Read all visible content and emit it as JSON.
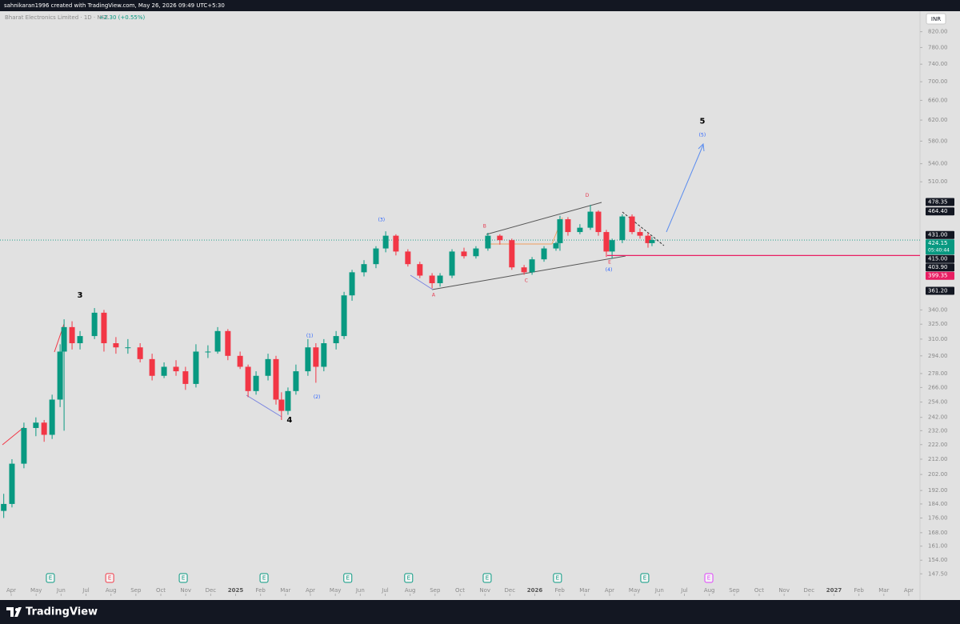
{
  "header": {
    "credit": "sahnikaran1996 created with TradingView.com, May 26, 2026 09:49 UTC+5:30",
    "symbol": "Bharat Electronics Limited · 1D · NSE",
    "change": "+2.30 (+0.55%)",
    "currency": "INR"
  },
  "footer": {
    "brand": "TradingView"
  },
  "chart_data": {
    "type": "candlestick",
    "log_scale": true,
    "colors": {
      "up": "#089981",
      "down": "#f23645",
      "last_price_line": "#089981"
    },
    "xlim": [
      -0.45,
      36.45
    ],
    "xticks": [
      {
        "value": 0,
        "label": "Apr"
      },
      {
        "value": 1,
        "label": "May"
      },
      {
        "value": 2,
        "label": "Jun"
      },
      {
        "value": 3,
        "label": "Jul"
      },
      {
        "value": 4,
        "label": "Aug"
      },
      {
        "value": 5,
        "label": "Sep"
      },
      {
        "value": 6,
        "label": "Oct"
      },
      {
        "value": 7,
        "label": "Nov"
      },
      {
        "value": 8,
        "label": "Dec"
      },
      {
        "value": 9,
        "label": "2025"
      },
      {
        "value": 10,
        "label": "Feb"
      },
      {
        "value": 11,
        "label": "Mar"
      },
      {
        "value": 12,
        "label": "Apr"
      },
      {
        "value": 13,
        "label": "May"
      },
      {
        "value": 14,
        "label": "Jun"
      },
      {
        "value": 15,
        "label": "Jul"
      },
      {
        "value": 16,
        "label": "Aug"
      },
      {
        "value": 17,
        "label": "Sep"
      },
      {
        "value": 18,
        "label": "Oct"
      },
      {
        "value": 19,
        "label": "Nov"
      },
      {
        "value": 20,
        "label": "Dec"
      },
      {
        "value": 21,
        "label": "2026"
      },
      {
        "value": 22,
        "label": "Feb"
      },
      {
        "value": 23,
        "label": "Mar"
      },
      {
        "value": 24,
        "label": "Apr"
      },
      {
        "value": 25,
        "label": "May"
      },
      {
        "value": 26,
        "label": "Jun"
      },
      {
        "value": 27,
        "label": "Jul"
      },
      {
        "value": 28,
        "label": "Aug"
      },
      {
        "value": 29,
        "label": "Sep"
      },
      {
        "value": 30,
        "label": "Oct"
      },
      {
        "value": 31,
        "label": "Nov"
      },
      {
        "value": 32,
        "label": "Dec"
      },
      {
        "value": 33,
        "label": "2027"
      },
      {
        "value": 34,
        "label": "Feb"
      },
      {
        "value": 35,
        "label": "Mar"
      },
      {
        "value": 36,
        "label": "Apr"
      }
    ],
    "ylim": [
      137.5,
      875
    ],
    "yticks": [
      {
        "value": 820,
        "label": "820.00"
      },
      {
        "value": 780,
        "label": "780.00"
      },
      {
        "value": 740,
        "label": "740.00"
      },
      {
        "value": 700,
        "label": "700.00"
      },
      {
        "value": 660,
        "label": "660.00"
      },
      {
        "value": 620,
        "label": "620.00"
      },
      {
        "value": 580,
        "label": "580.00"
      },
      {
        "value": 540,
        "label": "540.00"
      },
      {
        "value": 510,
        "label": "510.00"
      },
      {
        "value": 340,
        "label": "340.00"
      },
      {
        "value": 325,
        "label": "325.00"
      },
      {
        "value": 310,
        "label": "310.00"
      },
      {
        "value": 294,
        "label": "294.00"
      },
      {
        "value": 278,
        "label": "278.00"
      },
      {
        "value": 266,
        "label": "266.00"
      },
      {
        "value": 254,
        "label": "254.00"
      },
      {
        "value": 242,
        "label": "242.00"
      },
      {
        "value": 232,
        "label": "232.00"
      },
      {
        "value": 222,
        "label": "222.00"
      },
      {
        "value": 212,
        "label": "212.00"
      },
      {
        "value": 202,
        "label": "202.00"
      },
      {
        "value": 192,
        "label": "192.00"
      },
      {
        "value": 184,
        "label": "184.00"
      },
      {
        "value": 176,
        "label": "176.00"
      },
      {
        "value": 168,
        "label": "168.00"
      },
      {
        "value": 161,
        "label": "161.00"
      },
      {
        "value": 154,
        "label": "154.00"
      },
      {
        "value": 147.5,
        "label": "147.50"
      }
    ],
    "x": [
      -0.3,
      0.03,
      0.51,
      0.99,
      1.32,
      1.64,
      1.96,
      2.12,
      2.44,
      2.76,
      3.34,
      3.72,
      4.2,
      4.68,
      5.17,
      5.65,
      6.13,
      6.61,
      6.99,
      7.41,
      7.89,
      8.28,
      8.69,
      9.18,
      9.5,
      9.82,
      10.3,
      10.62,
      10.84,
      11.1,
      11.42,
      11.9,
      12.22,
      12.54,
      13.03,
      13.35,
      13.67,
      14.15,
      14.63,
      15.02,
      15.43,
      15.91,
      16.39,
      16.88,
      17.2,
      17.68,
      18.16,
      18.64,
      19.12,
      19.6,
      20.08,
      20.57,
      20.89,
      21.37,
      21.85,
      22.01,
      22.33,
      22.81,
      23.23,
      23.55,
      23.87,
      24.1,
      24.51,
      24.9,
      25.22,
      25.54,
      25.7
    ],
    "open": [
      180,
      184,
      209,
      234,
      238,
      229,
      256,
      298,
      322,
      306,
      313,
      337,
      306,
      302,
      302,
      291,
      276,
      284,
      280,
      269,
      298,
      298,
      318,
      294,
      284,
      263,
      276,
      291,
      256,
      247,
      263,
      280,
      302,
      284,
      306,
      313,
      356,
      383,
      393,
      413,
      430,
      409,
      393,
      379,
      370,
      379,
      409,
      403,
      413,
      430,
      424,
      389,
      383,
      399,
      413,
      420,
      453,
      435,
      441,
      464,
      435,
      409,
      424,
      457,
      435,
      430,
      420
    ],
    "high": [
      190,
      212,
      238,
      242,
      240,
      260,
      305,
      330,
      328,
      318,
      342,
      340,
      312,
      310,
      306,
      296,
      288,
      290,
      284,
      305,
      304,
      322,
      320,
      298,
      286,
      280,
      296,
      294,
      262,
      266,
      286,
      310,
      306,
      310,
      318,
      360,
      386,
      398,
      416,
      436,
      432,
      412,
      396,
      382,
      382,
      412,
      414,
      416,
      434,
      432,
      426,
      392,
      402,
      416,
      422,
      458,
      456,
      446,
      474,
      466,
      438,
      426,
      460,
      460,
      440,
      434,
      428
    ],
    "low": [
      176,
      182,
      206,
      228,
      224,
      226,
      250,
      232,
      300,
      300,
      310,
      298,
      296,
      296,
      288,
      272,
      274,
      276,
      264,
      266,
      292,
      296,
      290,
      282,
      258,
      260,
      272,
      252,
      240,
      244,
      260,
      276,
      270,
      280,
      300,
      310,
      350,
      378,
      388,
      408,
      404,
      390,
      376,
      364,
      366,
      376,
      400,
      400,
      410,
      418,
      386,
      380,
      380,
      396,
      410,
      410,
      430,
      432,
      438,
      430,
      402,
      400,
      420,
      432,
      426,
      414,
      416
    ],
    "close": [
      184,
      209,
      234,
      238,
      229,
      256,
      298,
      322,
      306,
      313,
      337,
      306,
      302,
      302,
      291,
      276,
      284,
      280,
      269,
      298,
      298,
      318,
      294,
      284,
      263,
      276,
      291,
      256,
      247,
      263,
      280,
      302,
      284,
      306,
      313,
      356,
      383,
      393,
      413,
      430,
      409,
      393,
      379,
      370,
      379,
      409,
      403,
      413,
      430,
      424,
      389,
      383,
      399,
      413,
      420,
      453,
      435,
      441,
      464,
      435,
      409,
      424,
      457,
      435,
      430,
      420,
      424.15
    ],
    "price_labels": [
      {
        "value": 478.35,
        "label": "478.35",
        "color": "#131722"
      },
      {
        "value": 464.4,
        "label": "464.40",
        "color": "#131722"
      },
      {
        "value": 431,
        "label": "431.00",
        "color": "#131722"
      },
      {
        "value": 424.15,
        "label": "424.15",
        "color": "#089981",
        "countdown": "05:40:44"
      },
      {
        "value": 415,
        "label": "415.00",
        "color": "#131722"
      },
      {
        "value": 403.9,
        "label": "403.90",
        "color": "#131722"
      },
      {
        "value": 399.35,
        "label": "399.35",
        "color": "#e91e63"
      },
      {
        "value": 361.2,
        "label": "361.20",
        "color": "#131722"
      }
    ],
    "annotations": [
      {
        "text": "3",
        "x": 2.76,
        "y": 356,
        "color": "#000000"
      },
      {
        "text": "4",
        "x": 11.16,
        "y": 240,
        "color": "#000000"
      },
      {
        "text": "5",
        "x": 27.72,
        "y": 618,
        "color": "#000000"
      },
      {
        "text": "(1)",
        "x": 11.97,
        "y": 313,
        "color": "#2962ff"
      },
      {
        "text": "(2)",
        "x": 12.26,
        "y": 258,
        "color": "#2962ff"
      },
      {
        "text": "(3)",
        "x": 14.85,
        "y": 452,
        "color": "#2962ff"
      },
      {
        "text": "(4)",
        "x": 23.97,
        "y": 386,
        "color": "#2962ff"
      },
      {
        "text": "(5)",
        "x": 27.72,
        "y": 591,
        "color": "#2962ff"
      },
      {
        "text": "A",
        "x": 16.94,
        "y": 356,
        "color": "#e53950"
      },
      {
        "text": "B",
        "x": 18.99,
        "y": 443,
        "color": "#e53950"
      },
      {
        "text": "C",
        "x": 20.66,
        "y": 373,
        "color": "#e53950"
      },
      {
        "text": "D",
        "x": 23.1,
        "y": 488,
        "color": "#e53950"
      },
      {
        "text": "E",
        "x": 24.0,
        "y": 395,
        "color": "#e53950"
      }
    ],
    "events": [
      {
        "label": "E",
        "x": 1.57,
        "color": "#089981"
      },
      {
        "label": "E",
        "x": 3.95,
        "color": "#f23645"
      },
      {
        "label": "E",
        "x": 6.9,
        "color": "#089981"
      },
      {
        "label": "E",
        "x": 10.14,
        "color": "#089981"
      },
      {
        "label": "E",
        "x": 13.5,
        "color": "#089981"
      },
      {
        "label": "E",
        "x": 15.94,
        "color": "#089981"
      },
      {
        "label": "E",
        "x": 19.09,
        "color": "#089981"
      },
      {
        "label": "E",
        "x": 21.91,
        "color": "#089981"
      },
      {
        "label": "E",
        "x": 25.41,
        "color": "#089981"
      },
      {
        "label": "E",
        "x": 27.98,
        "color": "#e040fb"
      }
    ]
  }
}
